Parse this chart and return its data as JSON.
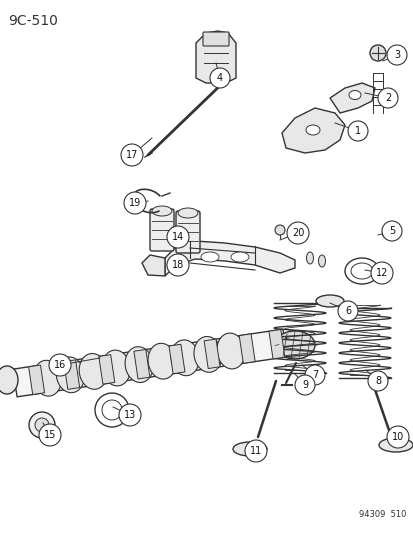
{
  "title_label": "9C-510",
  "footer_label": "94309  510",
  "bg_color": "#ffffff",
  "line_color": "#333333",
  "label_color": "#111111",
  "fig_width": 4.14,
  "fig_height": 5.33,
  "dpi": 100
}
